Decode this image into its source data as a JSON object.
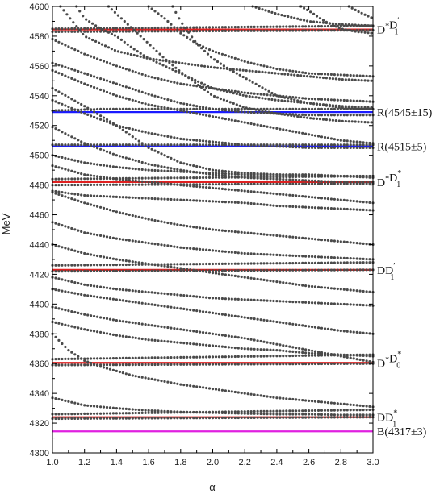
{
  "chart_data": {
    "type": "scatter",
    "xlabel": "α",
    "ylabel": "MeV",
    "xlim": [
      1.0,
      3.0
    ],
    "ylim": [
      4300,
      4600
    ],
    "xticks": [
      "1.0",
      "1.2",
      "1.4",
      "1.6",
      "1.8",
      "2.0",
      "2.2",
      "2.4",
      "2.6",
      "2.8",
      "3.0"
    ],
    "yticks": [
      "4300",
      "4320",
      "4340",
      "4360",
      "4380",
      "4400",
      "4420",
      "4440",
      "4460",
      "4480",
      "4500",
      "4520",
      "4540",
      "4560",
      "4580",
      "4600"
    ],
    "grid": false,
    "thresholds": [
      {
        "label": {
          "base": "D",
          "sup1": "*",
          "mid": "D",
          "sub": "1",
          "sup2": "′"
        },
        "value": 4584.5,
        "color": "#e02020"
      },
      {
        "label": {
          "base": "R(4545±15)"
        },
        "value": 4529,
        "color": "#1a1aff"
      },
      {
        "label": {
          "base": "R(4515±5)"
        },
        "value": 4506,
        "color": "#1a1aff"
      },
      {
        "label": {
          "base": "D",
          "sup1": "*",
          "mid": "D",
          "sub": "1",
          "sup2": "*"
        },
        "value": 4482,
        "color": "#e02020"
      },
      {
        "label": {
          "base": "DD",
          "sub": "1",
          "sup2": "′"
        },
        "value": 4423,
        "color": "#e02020"
      },
      {
        "label": {
          "base": "D",
          "sup1": "*",
          "mid": "D",
          "sub": "0",
          "sup2": "*"
        },
        "value": 4360.5,
        "color": "#e02020"
      },
      {
        "label": {
          "base": "DD",
          "sub": "1",
          "sup2": "*"
        },
        "value": 4324,
        "color": "#e02020"
      },
      {
        "label": {
          "base": "B(4317±3)"
        },
        "value": 4314.5,
        "color": "#e020e0"
      }
    ],
    "series": [
      {
        "x": [
          1.0,
          3.0
        ],
        "y": [
          4585,
          4587
        ]
      },
      {
        "x": [
          1.0,
          3.0
        ],
        "y": [
          4583,
          4584
        ]
      },
      {
        "x": [
          1.0,
          1.3,
          1.6,
          2.0,
          3.0
        ],
        "y": [
          4530,
          4531,
          4531,
          4531,
          4531
        ]
      },
      {
        "x": [
          1.0,
          3.0
        ],
        "y": [
          4507,
          4507
        ]
      },
      {
        "x": [
          1.0,
          3.0
        ],
        "y": [
          4484,
          4486
        ]
      },
      {
        "x": [
          1.0,
          3.0
        ],
        "y": [
          4480,
          4481
        ]
      },
      {
        "x": [
          1.0,
          3.0
        ],
        "y": [
          4426,
          4428
        ]
      },
      {
        "x": [
          1.0,
          3.0
        ],
        "y": [
          4422,
          4423
        ]
      },
      {
        "x": [
          1.0,
          3.0
        ],
        "y": [
          4363,
          4366
        ]
      },
      {
        "x": [
          1.0,
          3.0
        ],
        "y": [
          4359,
          4360
        ]
      },
      {
        "x": [
          1.0,
          3.0
        ],
        "y": [
          4326,
          4329
        ]
      },
      {
        "x": [
          1.0,
          3.0
        ],
        "y": [
          4323,
          4324
        ]
      },
      {
        "x": [
          1.0,
          1.2,
          1.4,
          1.6,
          1.8,
          2.0,
          2.2,
          2.4,
          2.6,
          2.8,
          3.0
        ],
        "y": [
          4337,
          4332,
          4330,
          4328.5,
          4327.5,
          4327,
          4326.5,
          4326,
          4326,
          4325.5,
          4325.5
        ]
      },
      {
        "x": [
          1.0,
          1.1,
          1.2,
          1.3,
          1.4,
          1.5,
          1.6,
          1.8,
          2.0,
          2.2,
          2.4,
          2.6,
          2.8,
          3.0
        ],
        "y": [
          4380,
          4369,
          4362,
          4358,
          4355,
          4352,
          4350,
          4346,
          4343,
          4340,
          4337,
          4335,
          4333,
          4331
        ]
      },
      {
        "x": [
          1.0,
          1.2,
          1.4,
          1.6,
          1.8,
          2.0,
          2.2,
          2.4,
          2.6,
          2.8,
          3.0
        ],
        "y": [
          4388,
          4383,
          4379,
          4376,
          4374,
          4372,
          4370,
          4369,
          4367,
          4366,
          4365
        ]
      },
      {
        "x": [
          1.0,
          1.2,
          1.4,
          1.6,
          1.8,
          2.0,
          2.2,
          2.4,
          2.6,
          2.8,
          3.0
        ],
        "y": [
          4398,
          4393,
          4389,
          4386,
          4383,
          4380,
          4377,
          4373,
          4369,
          4365,
          4361
        ]
      },
      {
        "x": [
          1.0,
          1.2,
          1.4,
          1.6,
          1.8,
          2.0,
          2.2,
          2.4,
          2.6,
          2.8,
          3.0
        ],
        "y": [
          4410,
          4406,
          4403,
          4400,
          4397,
          4394,
          4391,
          4388,
          4385,
          4382,
          4380
        ]
      },
      {
        "x": [
          1.0,
          1.2,
          1.4,
          1.6,
          1.8,
          2.0,
          2.2,
          2.4,
          2.6,
          2.8,
          3.0
        ],
        "y": [
          4418,
          4413,
          4410,
          4408,
          4406,
          4404,
          4403,
          4402,
          4401,
          4400,
          4399
        ]
      },
      {
        "x": [
          1.0,
          1.2,
          1.4,
          1.6,
          1.8,
          2.0,
          2.2,
          2.4,
          2.6,
          2.8,
          3.0
        ],
        "y": [
          4440,
          4434,
          4430,
          4427,
          4424,
          4421,
          4418,
          4415,
          4412,
          4410,
          4408
        ]
      },
      {
        "x": [
          1.0,
          1.2,
          1.4,
          1.6,
          1.8,
          2.0,
          2.2,
          2.4,
          2.6,
          2.8,
          3.0
        ],
        "y": [
          4455,
          4448,
          4444,
          4441,
          4438,
          4436,
          4434,
          4433,
          4432,
          4431,
          4430
        ]
      },
      {
        "x": [
          1.0,
          1.2,
          1.4,
          1.6,
          1.8,
          2.0,
          2.2,
          2.4,
          2.6,
          2.8,
          3.0
        ],
        "y": [
          4475,
          4468,
          4462,
          4457,
          4453,
          4450,
          4448,
          4446,
          4444,
          4442,
          4440
        ]
      },
      {
        "x": [
          1.0,
          1.2,
          1.4,
          1.6,
          1.8,
          2.0,
          2.2,
          2.4,
          2.6,
          2.8,
          3.0
        ],
        "y": [
          4476,
          4473,
          4472,
          4471,
          4470,
          4469,
          4468,
          4466,
          4465,
          4464,
          4463
        ]
      },
      {
        "x": [
          1.0,
          1.2,
          1.4,
          1.6,
          1.8,
          2.0,
          2.2,
          2.4,
          2.6,
          2.8,
          3.0
        ],
        "y": [
          4493,
          4487,
          4484,
          4482,
          4480,
          4478,
          4476,
          4474,
          4472,
          4470,
          4468
        ]
      },
      {
        "x": [
          1.0,
          1.2,
          1.4,
          1.6,
          1.8,
          2.0,
          2.2,
          2.4,
          2.6,
          2.8,
          3.0
        ],
        "y": [
          4500,
          4495,
          4492,
          4490,
          4489,
          4488,
          4487,
          4487,
          4487,
          4486,
          4486
        ]
      },
      {
        "x": [
          1.0,
          1.2,
          1.4,
          1.6,
          1.8,
          2.0,
          2.2,
          2.4,
          2.6,
          2.8,
          3.0
        ],
        "y": [
          4519,
          4508,
          4500,
          4494,
          4490,
          4487,
          4485,
          4484,
          4483,
          4482,
          4482
        ]
      },
      {
        "x": [
          1.0,
          1.2,
          1.4,
          1.6,
          1.8,
          2.0,
          2.2,
          2.4,
          2.6,
          2.8,
          3.0
        ],
        "y": [
          4545,
          4533,
          4520,
          4505,
          4495,
          4490,
          4488,
          4487,
          4486,
          4486,
          4485
        ]
      },
      {
        "x": [
          1.0,
          1.2,
          1.4,
          1.6,
          1.8,
          2.0,
          2.2,
          2.4,
          2.6,
          2.8,
          3.0
        ],
        "y": [
          4537,
          4528,
          4520,
          4515,
          4511,
          4509,
          4507,
          4506,
          4505,
          4505,
          4505
        ]
      },
      {
        "x": [
          1.0,
          1.2,
          1.4,
          1.6,
          1.8,
          2.0,
          2.2,
          2.4,
          2.6,
          2.8,
          3.0
        ],
        "y": [
          4557,
          4548,
          4540,
          4534,
          4530,
          4526,
          4522,
          4518,
          4514,
          4510,
          4508
        ]
      },
      {
        "x": [
          1.0,
          1.2,
          1.4,
          1.6,
          1.8,
          2.0,
          2.2,
          2.4,
          2.6,
          2.8,
          3.0
        ],
        "y": [
          4562,
          4555,
          4548,
          4541,
          4535,
          4531,
          4529,
          4528,
          4527,
          4527,
          4527
        ]
      },
      {
        "x": [
          1.0,
          1.2,
          1.4,
          1.6,
          1.8,
          2.0,
          2.2,
          2.4,
          2.6,
          2.8,
          3.0
        ],
        "y": [
          4578,
          4568,
          4560,
          4553,
          4548,
          4545,
          4542,
          4540,
          4538,
          4537,
          4536
        ]
      },
      {
        "x": [
          1.05,
          1.2,
          1.4,
          1.6,
          1.8,
          2.0,
          2.2,
          2.4,
          2.6,
          2.8,
          3.0
        ],
        "y": [
          4600,
          4580,
          4570,
          4565,
          4562,
          4559,
          4557,
          4555,
          4553,
          4551,
          4550
        ]
      },
      {
        "x": [
          1.15,
          1.2,
          1.3,
          1.4,
          1.5,
          1.6,
          1.7,
          1.8,
          1.9,
          2.0,
          2.2,
          2.4,
          2.6,
          2.8,
          3.0
        ],
        "y": [
          4600,
          4592,
          4585,
          4580,
          4572,
          4565,
          4560,
          4555,
          4550,
          4545,
          4540,
          4537,
          4535,
          4533,
          4532
        ]
      },
      {
        "x": [
          1.35,
          1.4,
          1.5,
          1.6,
          1.7,
          1.8,
          1.9,
          2.0,
          2.2,
          2.4,
          2.6,
          2.8,
          3.0
        ],
        "y": [
          4600,
          4595,
          4585,
          4575,
          4565,
          4556,
          4548,
          4540,
          4532,
          4528,
          4525,
          4523,
          4522
        ]
      },
      {
        "x": [
          1.6,
          1.7,
          1.8,
          1.9,
          2.0,
          2.2,
          2.4,
          2.6,
          2.8,
          3.0
        ],
        "y": [
          4600,
          4592,
          4582,
          4575,
          4570,
          4563,
          4558,
          4555,
          4554,
          4553
        ]
      },
      {
        "x": [
          1.75,
          1.8,
          1.9,
          2.0,
          2.1,
          2.2,
          2.4,
          2.6,
          2.8,
          3.0
        ],
        "y": [
          4600,
          4590,
          4575,
          4565,
          4558,
          4552,
          4540,
          4535,
          4532,
          4531
        ]
      },
      {
        "x": [
          2.25,
          2.4,
          2.6,
          2.8,
          3.0
        ],
        "y": [
          4600,
          4595,
          4590,
          4588,
          4587
        ]
      },
      {
        "x": [
          2.55,
          2.6,
          2.7,
          2.8,
          2.9,
          3.0
        ],
        "y": [
          4600,
          4597,
          4590,
          4585,
          4583,
          4582
        ]
      },
      {
        "x": [
          2.85,
          2.9,
          3.0
        ],
        "y": [
          4600,
          4597,
          4592
        ]
      }
    ]
  }
}
